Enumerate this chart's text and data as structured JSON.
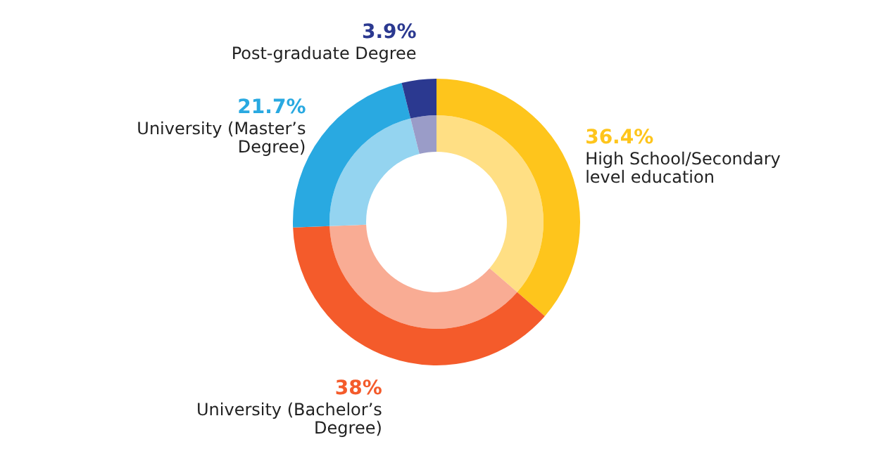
{
  "chart_data": {
    "type": "donut",
    "categories": [
      "High School/Secondary level education",
      "University (Bachelor’s Degree)",
      "University (Master’s Degree)",
      "Post-graduate Degree"
    ],
    "series": [
      {
        "values": [
          36.4,
          38,
          21.7,
          3.9
        ],
        "colors": [
          "#fec51c",
          "#f45b2b",
          "#29a9e1",
          "#2b3990"
        ],
        "value_labels": [
          "36.4%",
          "38%",
          "21.7%",
          "3.9%"
        ]
      },
      {
        "values": [
          36.4,
          38,
          21.7,
          3.9
        ],
        "colors": [
          "#ffdf84",
          "#f9ac94",
          "#94d4f0",
          "#9a9cc8"
        ]
      }
    ],
    "legend": false
  }
}
